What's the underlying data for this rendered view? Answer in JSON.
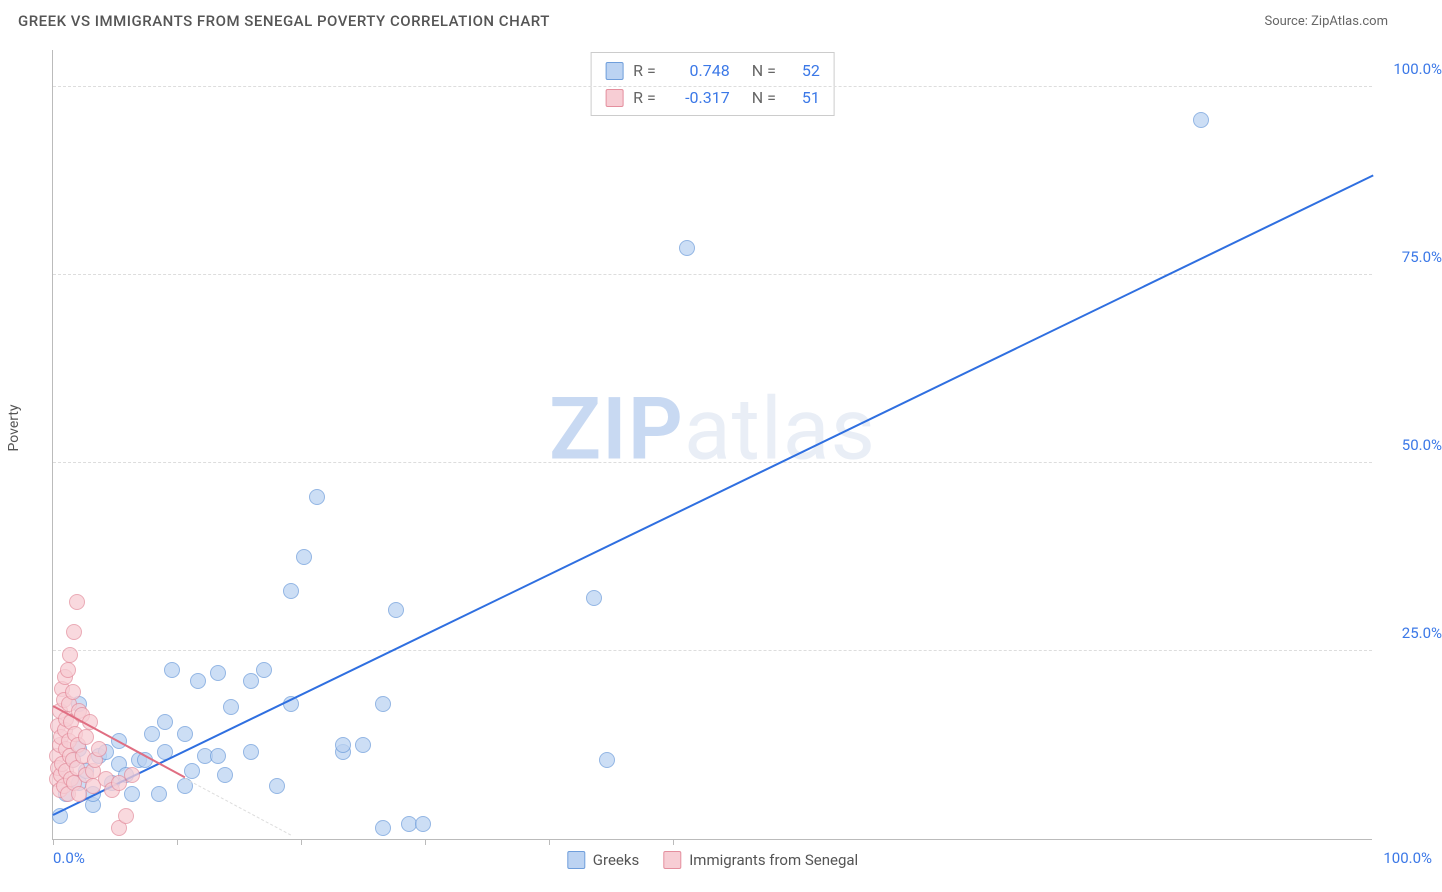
{
  "header": {
    "title": "GREEK VS IMMIGRANTS FROM SENEGAL POVERTY CORRELATION CHART",
    "source_prefix": "Source: ",
    "source_name": "ZipAtlas.com"
  },
  "ylabel": "Poverty",
  "watermark": {
    "part1": "ZIP",
    "part2": "atlas",
    "color1": "#c8d9f2",
    "color2": "#e9eef6"
  },
  "chart": {
    "type": "scatter",
    "background_color": "#ffffff",
    "grid_color": "#dddddd",
    "axis_color": "#bbbbbb",
    "xlim": [
      0,
      100
    ],
    "ylim": [
      0,
      105
    ],
    "y_ticks": [
      {
        "v": 25,
        "label": "25.0%"
      },
      {
        "v": 50,
        "label": "50.0%"
      },
      {
        "v": 75,
        "label": "75.0%"
      },
      {
        "v": 100,
        "label": "100.0%"
      }
    ],
    "x_tick_positions": [
      0,
      9.4,
      18.8,
      28.2,
      37.6,
      47.0
    ],
    "x_labels": {
      "min": "0.0%",
      "max": "100.0%"
    },
    "tick_label_color": "#3b78e7",
    "marker_radius": 8,
    "series": [
      {
        "id": "greeks",
        "label": "Greeks",
        "fill": "#bcd3f2",
        "stroke": "#6f9edb",
        "R": "0.748",
        "N": "52",
        "trend": {
          "x1": 0,
          "y1": 3,
          "x2": 100,
          "y2": 88,
          "color": "#2f6fe0",
          "width": 2
        },
        "points": [
          [
            0.5,
            3
          ],
          [
            1,
            6
          ],
          [
            1.5,
            10.5
          ],
          [
            2,
            12
          ],
          [
            2,
            18
          ],
          [
            2,
            7.5
          ],
          [
            2.5,
            9
          ],
          [
            3,
            4.5
          ],
          [
            3,
            6
          ],
          [
            3.5,
            11
          ],
          [
            4,
            11.5
          ],
          [
            4.5,
            7.5
          ],
          [
            5,
            13
          ],
          [
            5,
            10
          ],
          [
            5.5,
            8.5
          ],
          [
            6,
            6
          ],
          [
            6.5,
            10.5
          ],
          [
            7,
            10.5
          ],
          [
            7.5,
            14
          ],
          [
            8,
            6
          ],
          [
            8.5,
            11.5
          ],
          [
            8.5,
            15.5
          ],
          [
            9,
            22.5
          ],
          [
            10,
            14
          ],
          [
            10,
            7
          ],
          [
            10.5,
            9
          ],
          [
            11,
            21
          ],
          [
            11.5,
            11
          ],
          [
            12.5,
            22
          ],
          [
            12.5,
            11
          ],
          [
            13,
            8.5
          ],
          [
            13.5,
            17.5
          ],
          [
            15,
            11.5
          ],
          [
            15,
            21
          ],
          [
            16,
            22.5
          ],
          [
            17,
            7
          ],
          [
            18,
            33
          ],
          [
            18,
            18
          ],
          [
            19,
            37.5
          ],
          [
            20,
            45.5
          ],
          [
            22,
            11.5
          ],
          [
            22,
            12.5
          ],
          [
            23.5,
            12.5
          ],
          [
            25,
            18
          ],
          [
            25,
            1.5
          ],
          [
            26,
            30.5
          ],
          [
            27,
            2
          ],
          [
            28,
            2
          ],
          [
            41,
            32
          ],
          [
            42,
            10.5
          ],
          [
            48,
            78.5
          ],
          [
            87,
            95.5
          ]
        ]
      },
      {
        "id": "senegal",
        "label": "Immigrants from Senegal",
        "fill": "#f7cdd4",
        "stroke": "#e48f9e",
        "R": "-0.317",
        "N": "51",
        "trend": {
          "x1": 0,
          "y1": 17.5,
          "x2": 10,
          "y2": 8,
          "color": "#e06e82",
          "width": 2
        },
        "dashed_ext": {
          "x1": 10,
          "y1": 8,
          "x2": 18,
          "y2": 0.5,
          "color": "#dddddd"
        },
        "points": [
          [
            0.3,
            8
          ],
          [
            0.3,
            11
          ],
          [
            0.4,
            9.5
          ],
          [
            0.4,
            15
          ],
          [
            0.5,
            6.5
          ],
          [
            0.5,
            12.5
          ],
          [
            0.5,
            17
          ],
          [
            0.6,
            8.5
          ],
          [
            0.6,
            13.5
          ],
          [
            0.7,
            20
          ],
          [
            0.7,
            10
          ],
          [
            0.8,
            18.5
          ],
          [
            0.8,
            7
          ],
          [
            0.9,
            14.5
          ],
          [
            0.9,
            21.5
          ],
          [
            1,
            12
          ],
          [
            1,
            16
          ],
          [
            1,
            9
          ],
          [
            1.1,
            22.5
          ],
          [
            1.1,
            6
          ],
          [
            1.2,
            13
          ],
          [
            1.2,
            18
          ],
          [
            1.3,
            11
          ],
          [
            1.3,
            24.5
          ],
          [
            1.4,
            8
          ],
          [
            1.4,
            15.5
          ],
          [
            1.5,
            10.5
          ],
          [
            1.5,
            19.5
          ],
          [
            1.6,
            27.5
          ],
          [
            1.6,
            7.5
          ],
          [
            1.7,
            14
          ],
          [
            1.8,
            31.5
          ],
          [
            1.8,
            9.5
          ],
          [
            1.9,
            12.5
          ],
          [
            2,
            17
          ],
          [
            2,
            6
          ],
          [
            2.2,
            16.5
          ],
          [
            2.3,
            11
          ],
          [
            2.5,
            8.5
          ],
          [
            2.5,
            13.5
          ],
          [
            2.8,
            15.5
          ],
          [
            3,
            7
          ],
          [
            3,
            9
          ],
          [
            3.2,
            10.5
          ],
          [
            3.5,
            12
          ],
          [
            4,
            8
          ],
          [
            4.5,
            6.5
          ],
          [
            5,
            7.5
          ],
          [
            5,
            1.5
          ],
          [
            6,
            8.5
          ],
          [
            5.5,
            3
          ]
        ]
      }
    ]
  },
  "legend_top": {
    "r_label": "R  =",
    "n_label": "N  =",
    "value_color": "#3b78e7"
  },
  "legend_bottom_color": "#555555"
}
